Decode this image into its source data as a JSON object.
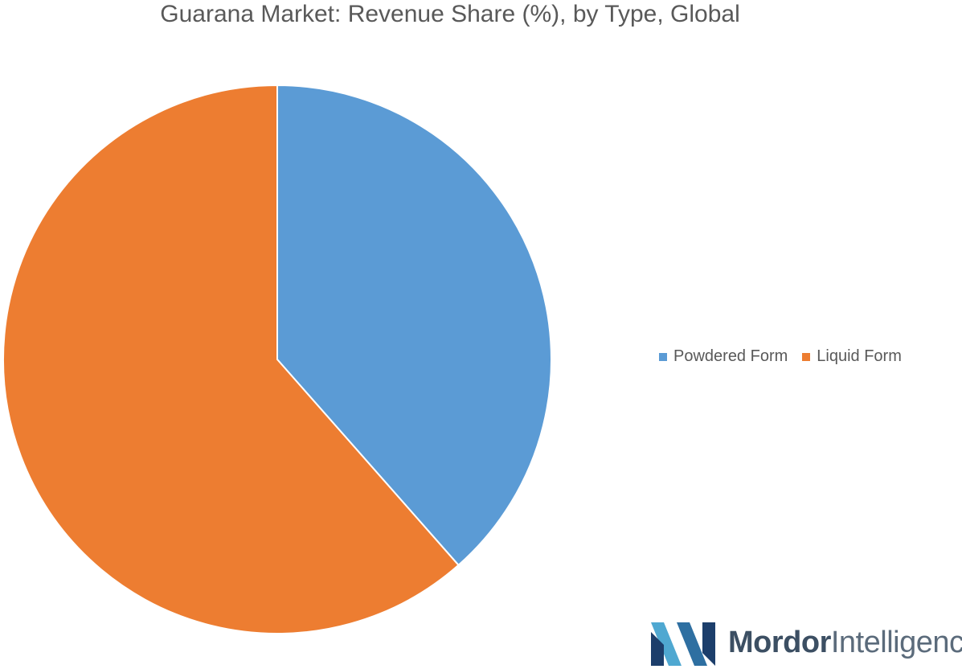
{
  "chart_data": {
    "type": "pie",
    "title": "Guarana Market: Revenue Share (%), by Type, Global",
    "series": [
      {
        "name": "Powdered Form",
        "value": 38.5,
        "color": "#5b9bd5"
      },
      {
        "name": "Liquid Form",
        "value": 61.5,
        "color": "#ed7d31"
      }
    ],
    "legend_position": "right",
    "start_angle": "12 o'clock",
    "direction": "clockwise"
  },
  "branding": {
    "logo_text_bold": "Mordor",
    "logo_text_light": "Intelligence",
    "logo_colors": [
      "#4fa8d1",
      "#2e6fa1",
      "#1c3e6b"
    ]
  }
}
